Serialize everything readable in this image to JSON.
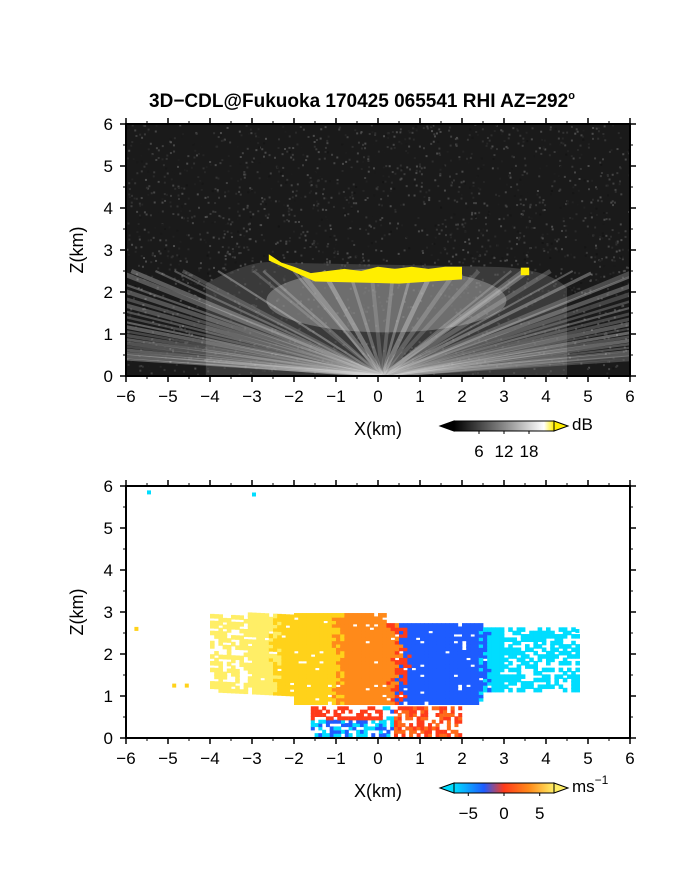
{
  "title": "3D−CDL@Fukuoka 170425 065541 RHI AZ=292",
  "title_degree": "o",
  "chart_data": [
    {
      "type": "heatmap",
      "id": "reflectivity",
      "xlabel": "X(km)",
      "ylabel": "Z(km)",
      "xlim": [
        -6,
        6
      ],
      "ylim": [
        0,
        6
      ],
      "xticks": [
        "−6",
        "−5",
        "−4",
        "−3",
        "−2",
        "−1",
        "0",
        "1",
        "2",
        "3",
        "4",
        "5",
        "6"
      ],
      "yticks": [
        "0",
        "1",
        "2",
        "3",
        "4",
        "5",
        "6"
      ],
      "colorbar": {
        "label": "dB",
        "ticks": [
          "6",
          "12",
          "18"
        ],
        "range": [
          0,
          24
        ]
      },
      "colors": {
        "background": "#1a1a1a",
        "echo": "#bfbfbf",
        "saturated": "#ffee00"
      },
      "yellow_top_contour": [
        [
          -2.6,
          2.9
        ],
        [
          -2.3,
          2.7
        ],
        [
          -2.0,
          2.6
        ],
        [
          -1.6,
          2.45
        ],
        [
          -1.2,
          2.5
        ],
        [
          -0.8,
          2.55
        ],
        [
          -0.4,
          2.5
        ],
        [
          0.0,
          2.6
        ],
        [
          0.4,
          2.55
        ],
        [
          0.8,
          2.6
        ],
        [
          1.2,
          2.55
        ],
        [
          1.6,
          2.6
        ],
        [
          2.0,
          2.6
        ]
      ],
      "yellow_cell_right": [
        [
          3.4,
          2.5
        ],
        [
          3.6,
          2.55
        ]
      ]
    },
    {
      "type": "heatmap",
      "id": "doppler",
      "xlabel": "X(km)",
      "ylabel": "Z(km)",
      "xlim": [
        -6,
        6
      ],
      "ylim": [
        0,
        6
      ],
      "xticks": [
        "−6",
        "−5",
        "−4",
        "−3",
        "−2",
        "−1",
        "0",
        "1",
        "2",
        "3",
        "4",
        "5",
        "6"
      ],
      "yticks": [
        "0",
        "1",
        "2",
        "3",
        "4",
        "5",
        "6"
      ],
      "colorbar": {
        "label": "ms",
        "label_exp": "−1",
        "ticks": [
          "−5",
          "0",
          "5"
        ],
        "range": [
          -7,
          7
        ]
      },
      "colors": {
        "negative_far": "#00ddff",
        "negative": "#1e5cff",
        "zero": "#ff3b1a",
        "positive": "#ffd21a",
        "positive_far": "#ffee66"
      }
    }
  ]
}
